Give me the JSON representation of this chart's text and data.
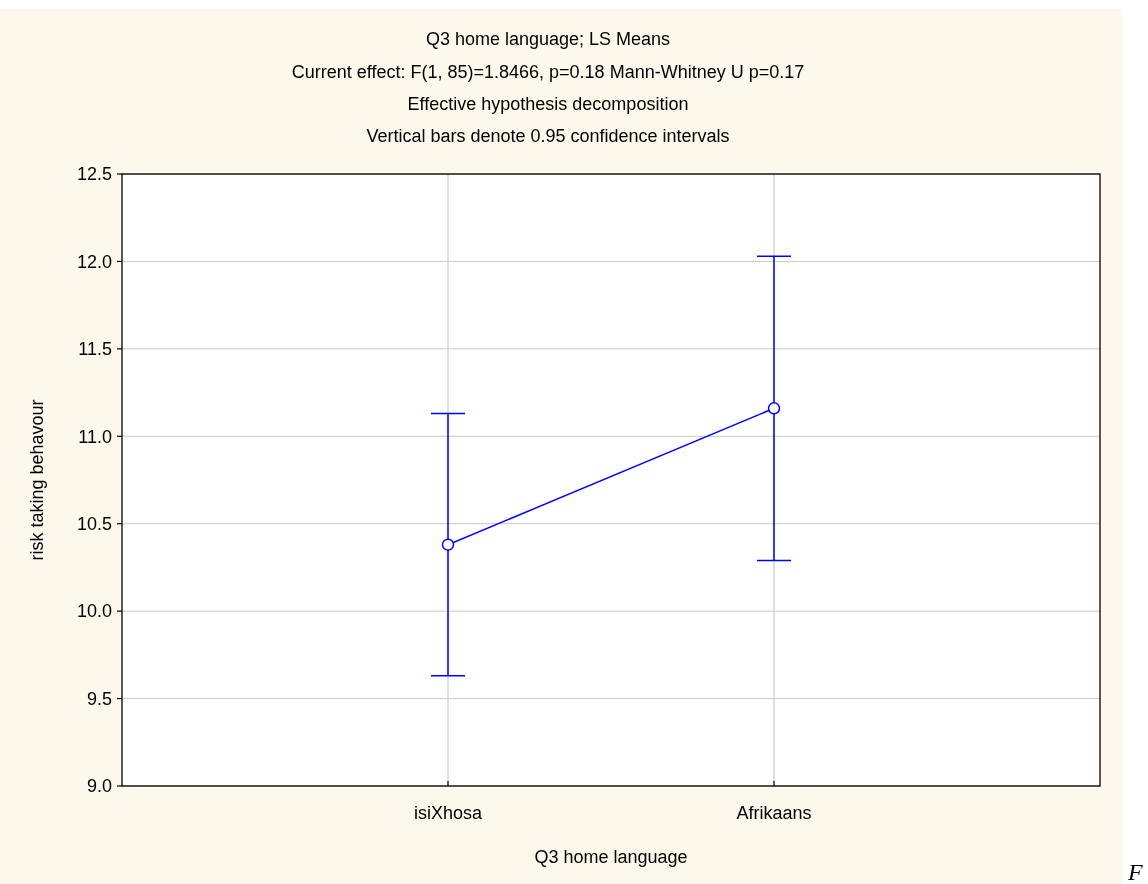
{
  "chart_data": {
    "type": "line",
    "title": "Q3 home language; LS Means",
    "subtitle": "Current effect: F(1, 85)=1.8466, p=0.18 Mann-Whitney U p=0.17\nEffective hypothesis decomposition\nVertical bars denote 0.95 confidence intervals",
    "xlabel": "Q3 home language",
    "ylabel": "risk taking behavour",
    "categories": [
      "isiXhosa",
      "Afrikaans"
    ],
    "series": [
      {
        "color": "#0000ff",
        "values": [
          10.38,
          11.16
        ],
        "errors": [
          [
            9.63,
            11.13
          ],
          [
            10.29,
            12.03
          ]
        ]
      }
    ],
    "ylim": [
      9,
      12.5
    ],
    "yticks": [
      {
        "value": 9,
        "label": "9.0"
      },
      9.5,
      {
        "value": 10,
        "label": "10.0"
      },
      10.5,
      {
        "value": 11,
        "label": "11.0"
      },
      11.5,
      {
        "value": 12,
        "label": "12.0"
      },
      12.5
    ],
    "grid": true,
    "marker": "circle",
    "line_style": "solid",
    "annotations": [
      "F"
    ]
  }
}
